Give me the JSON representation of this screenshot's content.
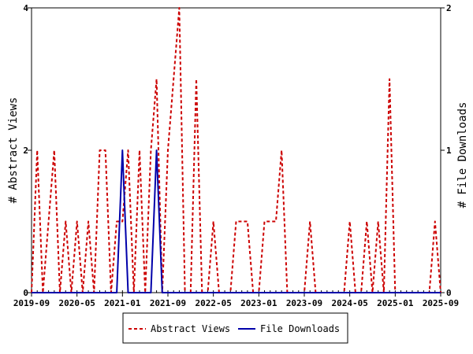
{
  "chart_data": {
    "type": "line",
    "x_start": "2019-09",
    "x_end": "2025-09",
    "x_ticks": [
      "2019-09",
      "2020-05",
      "2021-01",
      "2021-09",
      "2022-05",
      "2023-01",
      "2023-09",
      "2024-05",
      "2025-01",
      "2025-09"
    ],
    "y_left": {
      "label": "# Abstract Views",
      "ticks": [
        "0",
        "2",
        "4"
      ],
      "range": [
        0,
        4
      ]
    },
    "y_right": {
      "label": "# File Downloads",
      "ticks": [
        "0",
        "1",
        "2"
      ],
      "range": [
        0,
        2
      ]
    },
    "grid": false,
    "legend_position": "bottom",
    "series": [
      {
        "name": "Abstract Views",
        "axis": "left",
        "color": "#cc0000",
        "dash": "dashed",
        "x": [
          "2019-09",
          "2019-10",
          "2019-11",
          "2019-12",
          "2020-01",
          "2020-02",
          "2020-03",
          "2020-04",
          "2020-05",
          "2020-06",
          "2020-07",
          "2020-08",
          "2020-09",
          "2020-10",
          "2020-11",
          "2020-12",
          "2021-01",
          "2021-02",
          "2021-03",
          "2021-04",
          "2021-05",
          "2021-06",
          "2021-07",
          "2021-08",
          "2021-09",
          "2021-10",
          "2021-11",
          "2021-12",
          "2022-01",
          "2022-02",
          "2022-03",
          "2022-04",
          "2022-05",
          "2022-06",
          "2022-07",
          "2022-08",
          "2022-09",
          "2022-10",
          "2022-11",
          "2022-12",
          "2023-01",
          "2023-02",
          "2023-03",
          "2023-04",
          "2023-05",
          "2023-06",
          "2023-07",
          "2023-08",
          "2023-09",
          "2023-10",
          "2023-11",
          "2023-12",
          "2024-01",
          "2024-02",
          "2024-03",
          "2024-04",
          "2024-05",
          "2024-06",
          "2024-07",
          "2024-08",
          "2024-09",
          "2024-10",
          "2024-11",
          "2024-12",
          "2025-01",
          "2025-02",
          "2025-03",
          "2025-04",
          "2025-05",
          "2025-06",
          "2025-07",
          "2025-08",
          "2025-09"
        ],
        "y": [
          0,
          2,
          0,
          1,
          2,
          0,
          1,
          0,
          1,
          0,
          1,
          0,
          2,
          2,
          0,
          1,
          1,
          2,
          0,
          2,
          0,
          2,
          3,
          0,
          2,
          3,
          4,
          0,
          0,
          3,
          0,
          0,
          1,
          0,
          0,
          0,
          1,
          1,
          1,
          0,
          0,
          1,
          1,
          1,
          2,
          0,
          0,
          0,
          0,
          1,
          0,
          0,
          0,
          0,
          0,
          0,
          1,
          0,
          0,
          1,
          0,
          1,
          0,
          3,
          0,
          0,
          0,
          0,
          0,
          0,
          0,
          1,
          0
        ]
      },
      {
        "name": "File Downloads",
        "axis": "right",
        "color": "#0000aa",
        "dash": "solid",
        "x": [
          "2019-09",
          "2020-12",
          "2021-01",
          "2021-02",
          "2021-06",
          "2021-07",
          "2021-08",
          "2025-09"
        ],
        "y": [
          0,
          0,
          1,
          0,
          0,
          1,
          0,
          0
        ]
      }
    ]
  }
}
